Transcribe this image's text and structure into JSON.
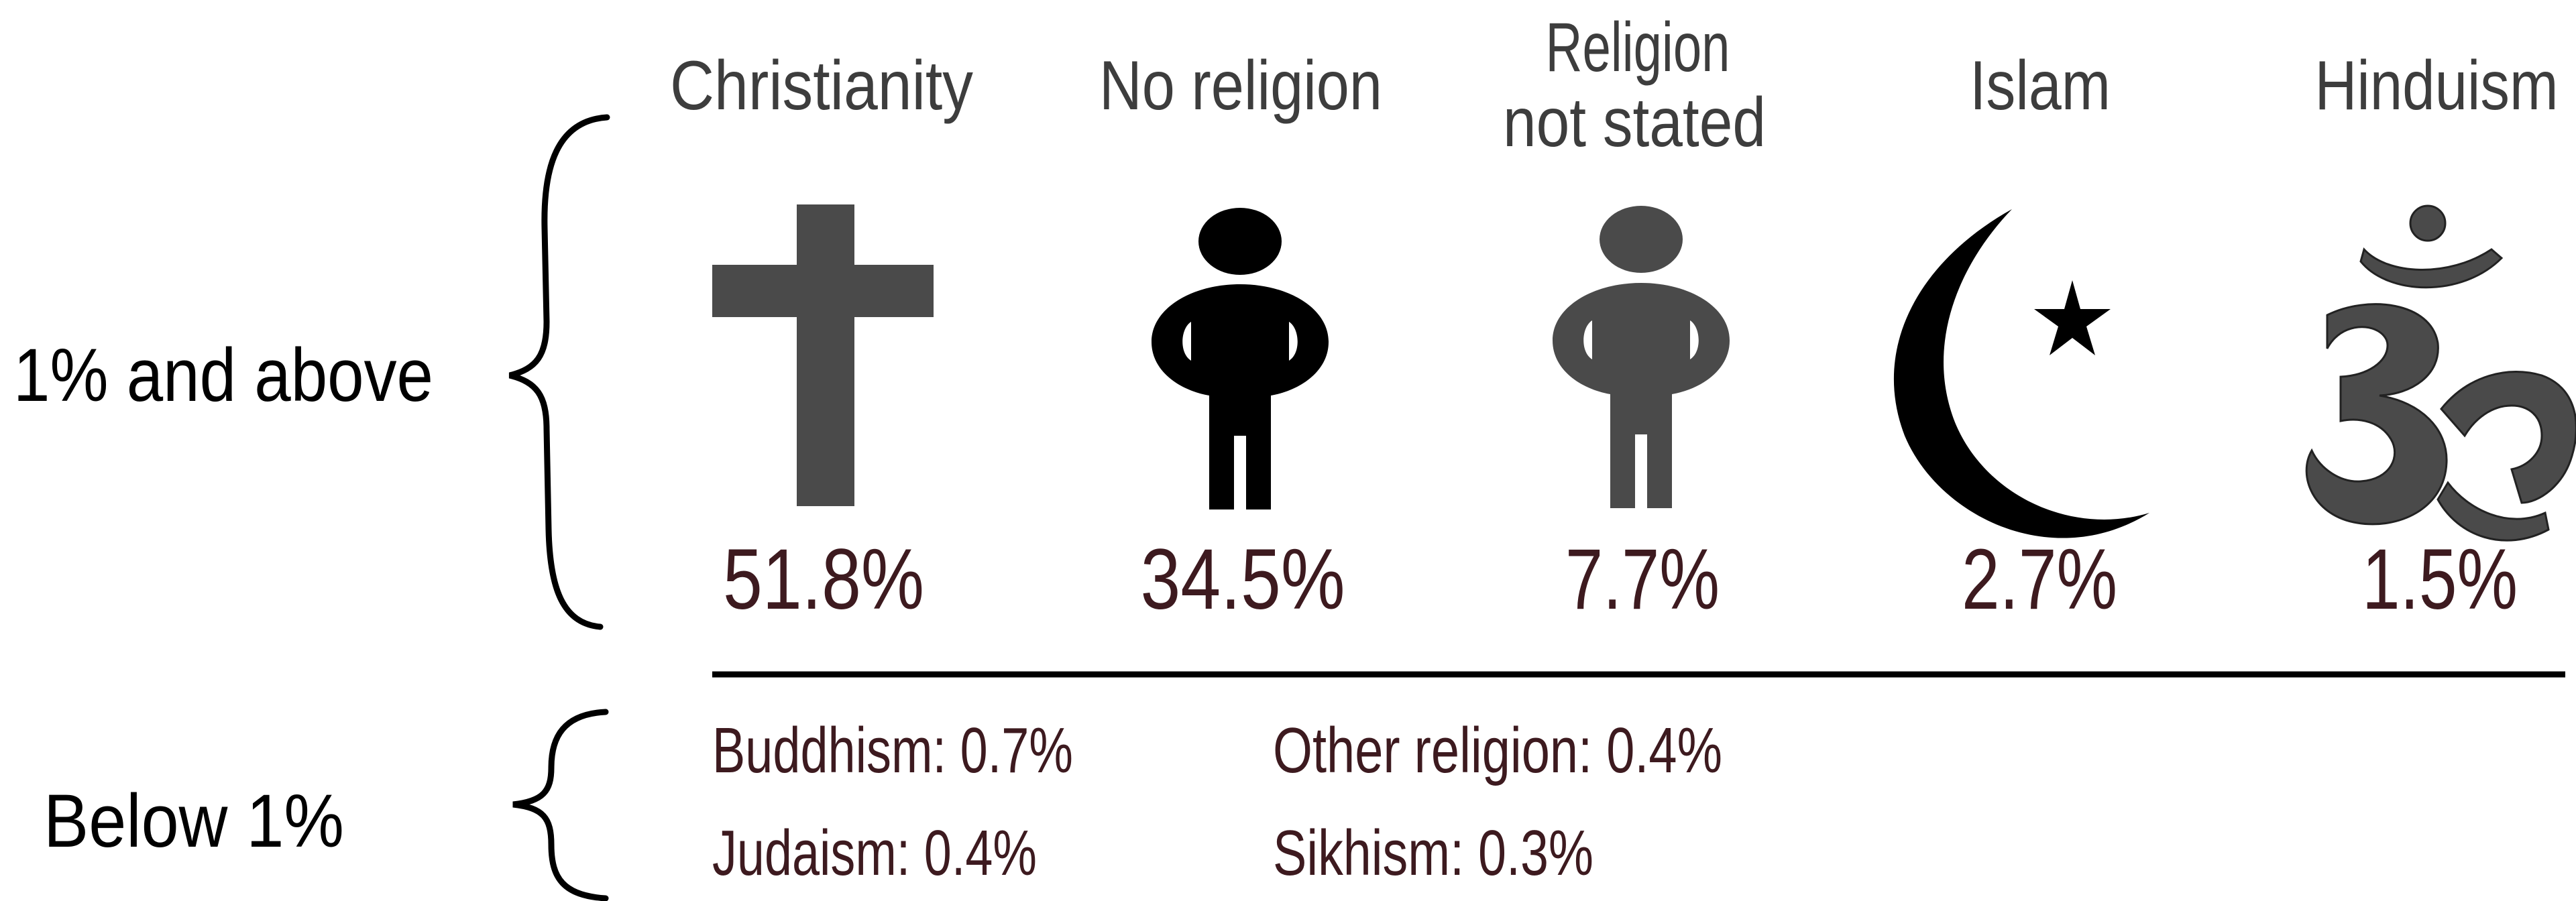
{
  "groups": {
    "above": {
      "label": "1% and above"
    },
    "below": {
      "label": "Below 1%"
    }
  },
  "chart_data": {
    "type": "pictogram",
    "unit": "%",
    "major": [
      {
        "name": "Christianity",
        "value": 51.8,
        "value_label": "51.8%",
        "icon": "cross-icon",
        "color": "#4a4a4a"
      },
      {
        "name": "No religion",
        "value": 34.5,
        "value_label": "34.5%",
        "icon": "person-icon",
        "color": "#000000"
      },
      {
        "name_lines": [
          "Religion",
          "not stated"
        ],
        "value": 7.7,
        "value_label": "7.7%",
        "icon": "person-icon",
        "color": "#4a4a4a"
      },
      {
        "name": "Islam",
        "value": 2.7,
        "value_label": "2.7%",
        "icon": "crescent-star-icon",
        "color": "#000000"
      },
      {
        "name": "Hinduism",
        "value": 1.5,
        "value_label": "1.5%",
        "icon": "om-icon",
        "color": "#4a4a4a"
      }
    ],
    "minor": [
      {
        "label": "Buddhism: 0.7%",
        "value": 0.7
      },
      {
        "label": "Judaism: 0.4%",
        "value": 0.4
      },
      {
        "label": "Other religion: 0.4%",
        "value": 0.4
      },
      {
        "label": "Sikhism: 0.3%",
        "value": 0.3
      }
    ]
  },
  "colors": {
    "category_text": "#3d3d3d",
    "value_text": "#3d1a1f",
    "group_text": "#000000",
    "rule": "#000000"
  }
}
